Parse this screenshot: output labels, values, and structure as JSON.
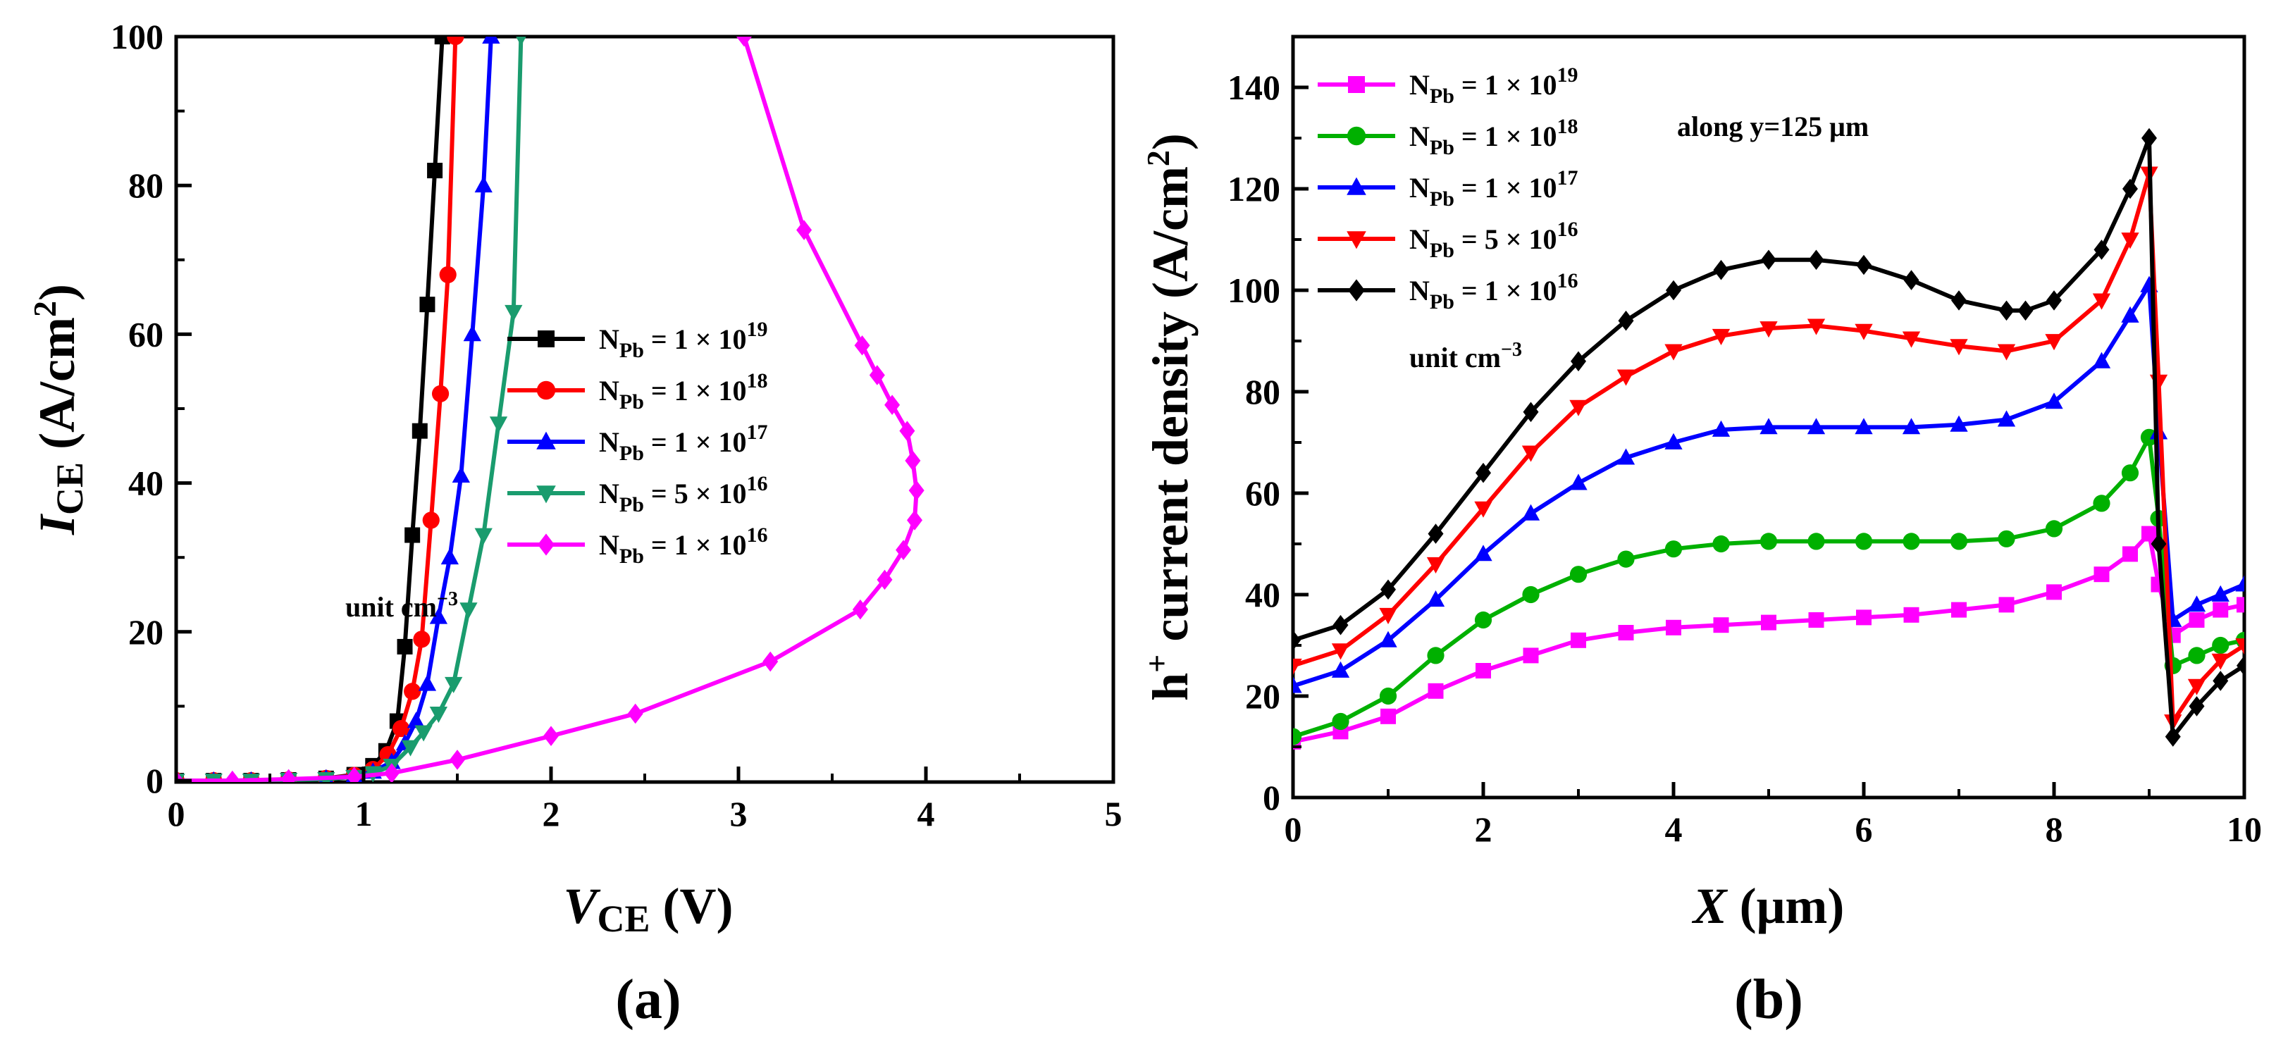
{
  "chart_data": [
    {
      "type": "line",
      "panel_label": "(a)",
      "xlabel": {
        "var": "V",
        "sub": "CE",
        "unit": " (V)"
      },
      "ylabel": {
        "var": "I",
        "sub": "CE",
        "unit_pre": " (A/cm",
        "unit_sup": "2",
        "unit_post": ")"
      },
      "xlim": [
        0,
        5
      ],
      "ylim": [
        0,
        100
      ],
      "xticks": [
        0,
        1,
        2,
        3,
        4,
        5
      ],
      "yticks": [
        0,
        20,
        40,
        60,
        80,
        100
      ],
      "legend_position": "center-right",
      "unit_note": {
        "text": "unit cm",
        "sup": "−3"
      },
      "series": [
        {
          "name": "N_Pb = 1 × 10^19",
          "base": "N",
          "sub": "Pb",
          "eq": " = 1 × 10",
          "sup": "19",
          "color": "#000000",
          "marker": "square",
          "x": [
            0,
            0.2,
            0.4,
            0.6,
            0.8,
            0.95,
            1.05,
            1.12,
            1.18,
            1.22,
            1.26,
            1.3,
            1.34,
            1.38,
            1.42
          ],
          "y": [
            0,
            0,
            0,
            0.1,
            0.3,
            0.8,
            2,
            4,
            8,
            18,
            33,
            47,
            64,
            82,
            100
          ]
        },
        {
          "name": "N_Pb = 1 × 10^18",
          "base": "N",
          "sub": "Pb",
          "eq": " = 1 × 10",
          "sup": "18",
          "color": "#ff0000",
          "marker": "circle",
          "x": [
            0,
            0.2,
            0.4,
            0.6,
            0.8,
            0.95,
            1.05,
            1.13,
            1.2,
            1.26,
            1.31,
            1.36,
            1.41,
            1.45,
            1.49
          ],
          "y": [
            0,
            0,
            0,
            0.1,
            0.3,
            0.7,
            1.5,
            3.5,
            7,
            12,
            19,
            35,
            52,
            68,
            100
          ]
        },
        {
          "name": "N_Pb = 1 × 10^17",
          "base": "N",
          "sub": "Pb",
          "eq": " = 1 × 10",
          "sup": "17",
          "color": "#0000ff",
          "marker": "triangle-up",
          "x": [
            0,
            0.2,
            0.4,
            0.6,
            0.8,
            0.95,
            1.05,
            1.15,
            1.22,
            1.28,
            1.34,
            1.4,
            1.46,
            1.52,
            1.58,
            1.64,
            1.68
          ],
          "y": [
            0,
            0,
            0,
            0.1,
            0.3,
            0.6,
            1.2,
            2.5,
            5,
            8,
            13,
            22,
            30,
            41,
            60,
            80,
            100
          ]
        },
        {
          "name": "N_Pb = 5 × 10^16",
          "base": "N",
          "sub": "Pb",
          "eq": " = 5 × 10",
          "sup": "16",
          "color": "#1a9c6e",
          "marker": "triangle-down",
          "x": [
            0,
            0.2,
            0.4,
            0.6,
            0.8,
            0.95,
            1.05,
            1.15,
            1.25,
            1.32,
            1.4,
            1.48,
            1.56,
            1.64,
            1.72,
            1.8,
            1.84
          ],
          "y": [
            0,
            0,
            0,
            0.1,
            0.2,
            0.5,
            1,
            2,
            4.5,
            6.5,
            9,
            13,
            23,
            33,
            48,
            63,
            100
          ]
        },
        {
          "name": "N_Pb = 1 × 10^16",
          "base": "N",
          "sub": "Pb",
          "eq": " = 1 × 10",
          "sup": "16",
          "color": "#ff00ff",
          "marker": "diamond",
          "x": [
            0,
            0.3,
            0.6,
            0.95,
            1.15,
            1.5,
            2.0,
            2.45,
            3.17,
            3.65,
            3.78,
            3.88,
            3.94,
            3.95,
            3.93,
            3.9,
            3.82,
            3.74,
            3.66,
            3.35,
            3.03
          ],
          "y": [
            0,
            0,
            0.2,
            0.5,
            1,
            2.8,
            6,
            9,
            16,
            23,
            27,
            31,
            35,
            39,
            43,
            47,
            50.5,
            54.5,
            58.5,
            74,
            100
          ]
        }
      ]
    },
    {
      "type": "line",
      "panel_label": "(b)",
      "xlabel": {
        "var": "X",
        "unit": " (μm)"
      },
      "ylabel": {
        "pre": "h",
        "pre_sup": "+",
        "rest": " current density (A/cm",
        "unit_sup": "2",
        "unit_post": ")"
      },
      "xlim": [
        0,
        10
      ],
      "ylim": [
        0,
        150
      ],
      "xticks": [
        0,
        2,
        4,
        6,
        8,
        10
      ],
      "yticks": [
        0,
        20,
        40,
        60,
        80,
        100,
        120,
        140
      ],
      "annotation": "along y=125 μm",
      "legend_position": "top-left",
      "unit_note": {
        "text": "unit cm",
        "sup": "−3"
      },
      "series": [
        {
          "name": "N_Pb = 1 × 10^19",
          "base": "N",
          "sub": "Pb",
          "eq": " = 1 × 10",
          "sup": "19",
          "color": "#ff00ff",
          "marker": "square",
          "x": [
            0,
            0.5,
            1,
            1.5,
            2,
            2.5,
            3,
            3.5,
            4,
            4.5,
            5,
            5.5,
            6,
            6.5,
            7,
            7.5,
            8,
            8.5,
            8.8,
            9.0,
            9.1,
            9.25,
            9.5,
            9.75,
            10
          ],
          "y": [
            11,
            13,
            16,
            21,
            25,
            28,
            31,
            32.5,
            33.5,
            34,
            34.5,
            35,
            35.5,
            36,
            37,
            38,
            40.5,
            44,
            48,
            52,
            42,
            32,
            35,
            37,
            38
          ]
        },
        {
          "name": "N_Pb = 1 × 10^18",
          "base": "N",
          "sub": "Pb",
          "eq": " = 1 × 10",
          "sup": "18",
          "color": "#00b000",
          "marker": "circle",
          "x": [
            0,
            0.5,
            1,
            1.5,
            2,
            2.5,
            3,
            3.5,
            4,
            4.5,
            5,
            5.5,
            6,
            6.5,
            7,
            7.5,
            8,
            8.5,
            8.8,
            9.0,
            9.1,
            9.25,
            9.5,
            9.75,
            10
          ],
          "y": [
            12,
            15,
            20,
            28,
            35,
            40,
            44,
            47,
            49,
            50,
            50.5,
            50.5,
            50.5,
            50.5,
            50.5,
            51,
            53,
            58,
            64,
            71,
            55,
            26,
            28,
            30,
            31
          ]
        },
        {
          "name": "N_Pb = 1 × 10^17",
          "base": "N",
          "sub": "Pb",
          "eq": " = 1 × 10",
          "sup": "17",
          "color": "#0000ff",
          "marker": "triangle-up",
          "x": [
            0,
            0.5,
            1,
            1.5,
            2,
            2.5,
            3,
            3.5,
            4,
            4.5,
            5,
            5.5,
            6,
            6.5,
            7,
            7.5,
            8,
            8.5,
            8.8,
            9.0,
            9.1,
            9.25,
            9.5,
            9.75,
            10
          ],
          "y": [
            22,
            25,
            31,
            39,
            48,
            56,
            62,
            67,
            70,
            72.5,
            73,
            73,
            73,
            73,
            73.5,
            74.5,
            78,
            86,
            95,
            101,
            72,
            35,
            38,
            40,
            42
          ]
        },
        {
          "name": "N_Pb = 5 × 10^16",
          "base": "N",
          "sub": "Pb",
          "eq": " = 5 × 10",
          "sup": "16",
          "color": "#ff0000",
          "marker": "triangle-down",
          "x": [
            0,
            0.5,
            1,
            1.5,
            2,
            2.5,
            3,
            3.5,
            4,
            4.5,
            5,
            5.5,
            6,
            6.5,
            7,
            7.5,
            8,
            8.5,
            8.8,
            9.0,
            9.1,
            9.25,
            9.5,
            9.75,
            10
          ],
          "y": [
            26,
            29,
            36,
            46,
            57,
            68,
            77,
            83,
            88,
            91,
            92.5,
            93,
            92,
            90.5,
            89,
            88,
            90,
            98,
            110,
            123,
            82,
            15,
            22,
            27,
            30
          ]
        },
        {
          "name": "N_Pb = 1 × 10^16",
          "base": "N",
          "sub": "Pb",
          "eq": " = 1 × 10",
          "sup": "16",
          "color": "#000000",
          "marker": "diamond",
          "x": [
            0,
            0.5,
            1,
            1.5,
            2,
            2.5,
            3,
            3.5,
            4,
            4.5,
            5,
            5.5,
            6,
            6.5,
            7,
            7.5,
            7.7,
            8,
            8.5,
            8.8,
            9.0,
            9.1,
            9.25,
            9.5,
            9.75,
            10
          ],
          "y": [
            31,
            34,
            41,
            52,
            64,
            76,
            86,
            94,
            100,
            104,
            106,
            106,
            105,
            102,
            98,
            96,
            96,
            98,
            108,
            120,
            130,
            50,
            12,
            18,
            23,
            26
          ]
        }
      ]
    }
  ]
}
